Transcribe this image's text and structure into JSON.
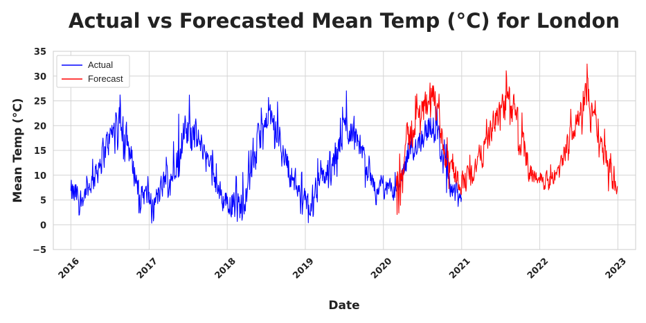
{
  "chart_data": {
    "type": "line",
    "title": "Actual vs Forecasted Mean Temp (°C) for London",
    "xlabel": "Date",
    "ylabel": "Mean Temp (°C)",
    "x_ticks": [
      "2016",
      "2017",
      "2018",
      "2019",
      "2020",
      "2021",
      "2022",
      "2023"
    ],
    "y_ticks": [
      -5,
      0,
      5,
      10,
      15,
      20,
      25,
      30,
      35
    ],
    "ylim": [
      -5,
      35
    ],
    "xlim": [
      "2015-10-11",
      "2023-03-25"
    ],
    "grid": true,
    "legend_position": "top-left",
    "series": [
      {
        "name": "Actual",
        "color": "#0000ff",
        "x_start": "2016-01-01",
        "x_end": "2020-12-31",
        "monthly_x": [
          "2016-01",
          "2016-02",
          "2016-03",
          "2016-04",
          "2016-05",
          "2016-06",
          "2016-07",
          "2016-08",
          "2016-09",
          "2016-10",
          "2016-11",
          "2016-12",
          "2017-01",
          "2017-02",
          "2017-03",
          "2017-04",
          "2017-05",
          "2017-06",
          "2017-07",
          "2017-08",
          "2017-09",
          "2017-10",
          "2017-11",
          "2017-12",
          "2018-01",
          "2018-02",
          "2018-03",
          "2018-04",
          "2018-05",
          "2018-06",
          "2018-07",
          "2018-08",
          "2018-09",
          "2018-10",
          "2018-11",
          "2018-12",
          "2019-01",
          "2019-02",
          "2019-03",
          "2019-04",
          "2019-05",
          "2019-06",
          "2019-07",
          "2019-08",
          "2019-09",
          "2019-10",
          "2019-11",
          "2019-12",
          "2020-01",
          "2020-02",
          "2020-03",
          "2020-04",
          "2020-05",
          "2020-06",
          "2020-07",
          "2020-08",
          "2020-09",
          "2020-10",
          "2020-11",
          "2020-12"
        ],
        "monthly_mean": [
          6,
          5,
          7,
          9,
          13,
          16,
          19,
          20,
          18,
          12,
          7,
          6,
          4,
          6,
          9,
          10,
          15,
          18,
          19,
          17,
          15,
          13,
          7,
          5,
          5,
          3,
          5,
          11,
          15,
          19,
          22,
          19,
          16,
          11,
          8,
          6,
          4,
          7,
          9,
          11,
          12,
          17,
          20,
          19,
          16,
          11,
          8,
          7,
          7,
          7,
          8,
          12,
          15,
          17,
          19,
          20,
          17,
          11,
          8,
          5
        ],
        "monthly_max": [
          12,
          10,
          10,
          14,
          20,
          22,
          25,
          27,
          24,
          18,
          12,
          11,
          9,
          11,
          14,
          15,
          22,
          25,
          27,
          23,
          20,
          17,
          12,
          10,
          11,
          10,
          11,
          20,
          24,
          24,
          26,
          27,
          21,
          17,
          12,
          11,
          8,
          14,
          13,
          18,
          20,
          22,
          28,
          25,
          21,
          15,
          12,
          10,
          11,
          11,
          11,
          16,
          19,
          22,
          25,
          26,
          23,
          17,
          13,
          9
        ],
        "monthly_min": [
          1,
          2,
          3,
          5,
          8,
          12,
          14,
          15,
          12,
          7,
          2,
          2,
          0,
          1,
          5,
          6,
          9,
          13,
          15,
          14,
          11,
          9,
          2,
          1,
          2,
          -3,
          1,
          5,
          10,
          15,
          17,
          15,
          11,
          6,
          3,
          2,
          0,
          2,
          5,
          7,
          8,
          11,
          14,
          15,
          12,
          6,
          4,
          3,
          3,
          3,
          5,
          7,
          10,
          13,
          14,
          15,
          11,
          7,
          3,
          -1
        ]
      },
      {
        "name": "Forecast",
        "color": "#ff0000",
        "x_start": "2020-03-01",
        "x_end": "2022-12-31",
        "monthly_x": [
          "2020-03",
          "2020-04",
          "2020-05",
          "2020-06",
          "2020-07",
          "2020-08",
          "2020-09",
          "2020-10",
          "2020-11",
          "2020-12",
          "2021-01",
          "2021-02",
          "2021-03",
          "2021-04",
          "2021-05",
          "2021-06",
          "2021-07",
          "2021-08",
          "2021-09",
          "2021-10",
          "2021-11",
          "2021-12",
          "2022-01",
          "2022-02",
          "2022-03",
          "2022-04",
          "2022-05",
          "2022-06",
          "2022-07",
          "2022-08",
          "2022-09",
          "2022-10",
          "2022-11",
          "2022-12"
        ],
        "monthly_mean": [
          10,
          16,
          19,
          22,
          26,
          27,
          21,
          14,
          11,
          9,
          9,
          10,
          13,
          15,
          19,
          22,
          24,
          25,
          21,
          15,
          11,
          10,
          9,
          9,
          10,
          13,
          17,
          21,
          24,
          26,
          23,
          17,
          12,
          8
        ],
        "monthly_max": [
          14,
          23,
          26,
          27,
          30,
          32,
          27,
          19,
          15,
          13,
          13,
          15,
          18,
          20,
          24,
          27,
          30,
          33,
          27,
          22,
          16,
          13,
          12,
          12,
          13,
          16,
          22,
          26,
          32,
          33,
          29,
          22,
          17,
          12
        ],
        "monthly_min": [
          2,
          10,
          13,
          17,
          22,
          21,
          15,
          8,
          6,
          4,
          4,
          5,
          9,
          11,
          14,
          18,
          19,
          20,
          16,
          10,
          7,
          7,
          7,
          7,
          8,
          10,
          13,
          17,
          18,
          20,
          16,
          12,
          7,
          5
        ]
      }
    ]
  }
}
